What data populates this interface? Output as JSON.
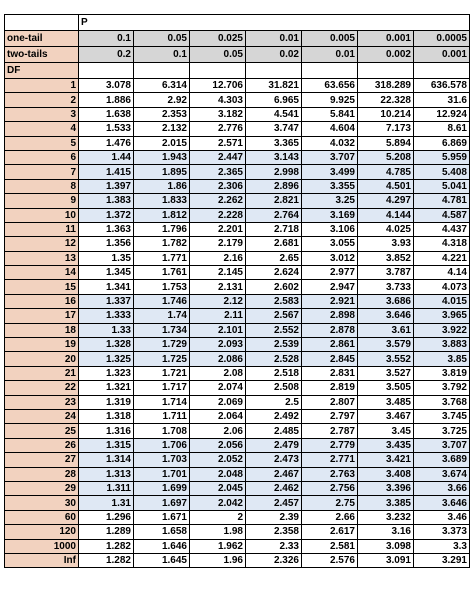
{
  "header": {
    "p_label": "P"
  },
  "one_tail": {
    "label": "one-tail",
    "values": [
      "0.1",
      "0.05",
      "0.025",
      "0.01",
      "0.005",
      "0.001",
      "0.0005"
    ]
  },
  "two_tails": {
    "label": "two-tails",
    "values": [
      "0.2",
      "0.1",
      "0.05",
      "0.02",
      "0.01",
      "0.002",
      "0.001"
    ]
  },
  "df_label": "DF",
  "rows": [
    {
      "df": "1",
      "v": [
        "3.078",
        "6.314",
        "12.706",
        "31.821",
        "63.656",
        "318.289",
        "636.578"
      ]
    },
    {
      "df": "2",
      "v": [
        "1.886",
        "2.92",
        "4.303",
        "6.965",
        "9.925",
        "22.328",
        "31.6"
      ]
    },
    {
      "df": "3",
      "v": [
        "1.638",
        "2.353",
        "3.182",
        "4.541",
        "5.841",
        "10.214",
        "12.924"
      ]
    },
    {
      "df": "4",
      "v": [
        "1.533",
        "2.132",
        "2.776",
        "3.747",
        "4.604",
        "7.173",
        "8.61"
      ]
    },
    {
      "df": "5",
      "v": [
        "1.476",
        "2.015",
        "2.571",
        "3.365",
        "4.032",
        "5.894",
        "6.869"
      ]
    },
    {
      "df": "6",
      "v": [
        "1.44",
        "1.943",
        "2.447",
        "3.143",
        "3.707",
        "5.208",
        "5.959"
      ]
    },
    {
      "df": "7",
      "v": [
        "1.415",
        "1.895",
        "2.365",
        "2.998",
        "3.499",
        "4.785",
        "5.408"
      ]
    },
    {
      "df": "8",
      "v": [
        "1.397",
        "1.86",
        "2.306",
        "2.896",
        "3.355",
        "4.501",
        "5.041"
      ]
    },
    {
      "df": "9",
      "v": [
        "1.383",
        "1.833",
        "2.262",
        "2.821",
        "3.25",
        "4.297",
        "4.781"
      ]
    },
    {
      "df": "10",
      "v": [
        "1.372",
        "1.812",
        "2.228",
        "2.764",
        "3.169",
        "4.144",
        "4.587"
      ]
    },
    {
      "df": "11",
      "v": [
        "1.363",
        "1.796",
        "2.201",
        "2.718",
        "3.106",
        "4.025",
        "4.437"
      ]
    },
    {
      "df": "12",
      "v": [
        "1.356",
        "1.782",
        "2.179",
        "2.681",
        "3.055",
        "3.93",
        "4.318"
      ]
    },
    {
      "df": "13",
      "v": [
        "1.35",
        "1.771",
        "2.16",
        "2.65",
        "3.012",
        "3.852",
        "4.221"
      ]
    },
    {
      "df": "14",
      "v": [
        "1.345",
        "1.761",
        "2.145",
        "2.624",
        "2.977",
        "3.787",
        "4.14"
      ]
    },
    {
      "df": "15",
      "v": [
        "1.341",
        "1.753",
        "2.131",
        "2.602",
        "2.947",
        "3.733",
        "4.073"
      ]
    },
    {
      "df": "16",
      "v": [
        "1.337",
        "1.746",
        "2.12",
        "2.583",
        "2.921",
        "3.686",
        "4.015"
      ]
    },
    {
      "df": "17",
      "v": [
        "1.333",
        "1.74",
        "2.11",
        "2.567",
        "2.898",
        "3.646",
        "3.965"
      ]
    },
    {
      "df": "18",
      "v": [
        "1.33",
        "1.734",
        "2.101",
        "2.552",
        "2.878",
        "3.61",
        "3.922"
      ]
    },
    {
      "df": "19",
      "v": [
        "1.328",
        "1.729",
        "2.093",
        "2.539",
        "2.861",
        "3.579",
        "3.883"
      ]
    },
    {
      "df": "20",
      "v": [
        "1.325",
        "1.725",
        "2.086",
        "2.528",
        "2.845",
        "3.552",
        "3.85"
      ]
    },
    {
      "df": "21",
      "v": [
        "1.323",
        "1.721",
        "2.08",
        "2.518",
        "2.831",
        "3.527",
        "3.819"
      ]
    },
    {
      "df": "22",
      "v": [
        "1.321",
        "1.717",
        "2.074",
        "2.508",
        "2.819",
        "3.505",
        "3.792"
      ]
    },
    {
      "df": "23",
      "v": [
        "1.319",
        "1.714",
        "2.069",
        "2.5",
        "2.807",
        "3.485",
        "3.768"
      ]
    },
    {
      "df": "24",
      "v": [
        "1.318",
        "1.711",
        "2.064",
        "2.492",
        "2.797",
        "3.467",
        "3.745"
      ]
    },
    {
      "df": "25",
      "v": [
        "1.316",
        "1.708",
        "2.06",
        "2.485",
        "2.787",
        "3.45",
        "3.725"
      ]
    },
    {
      "df": "26",
      "v": [
        "1.315",
        "1.706",
        "2.056",
        "2.479",
        "2.779",
        "3.435",
        "3.707"
      ]
    },
    {
      "df": "27",
      "v": [
        "1.314",
        "1.703",
        "2.052",
        "2.473",
        "2.771",
        "3.421",
        "3.689"
      ]
    },
    {
      "df": "28",
      "v": [
        "1.313",
        "1.701",
        "2.048",
        "2.467",
        "2.763",
        "3.408",
        "3.674"
      ]
    },
    {
      "df": "29",
      "v": [
        "1.311",
        "1.699",
        "2.045",
        "2.462",
        "2.756",
        "3.396",
        "3.66"
      ]
    },
    {
      "df": "30",
      "v": [
        "1.31",
        "1.697",
        "2.042",
        "2.457",
        "2.75",
        "3.385",
        "3.646"
      ]
    },
    {
      "df": "60",
      "v": [
        "1.296",
        "1.671",
        "2",
        "2.39",
        "2.66",
        "3.232",
        "3.46"
      ]
    },
    {
      "df": "120",
      "v": [
        "1.289",
        "1.658",
        "1.98",
        "2.358",
        "2.617",
        "3.16",
        "3.373"
      ]
    },
    {
      "df": "1000",
      "v": [
        "1.282",
        "1.646",
        "1.962",
        "2.33",
        "2.581",
        "3.098",
        "3.3"
      ]
    },
    {
      "df": "Inf",
      "v": [
        "1.282",
        "1.645",
        "1.96",
        "2.326",
        "2.576",
        "3.091",
        "3.291"
      ]
    }
  ],
  "colors": {
    "row_header": "#f2d2bf",
    "band": "#dfe8f4",
    "header_gray": "#d6d6d6"
  }
}
